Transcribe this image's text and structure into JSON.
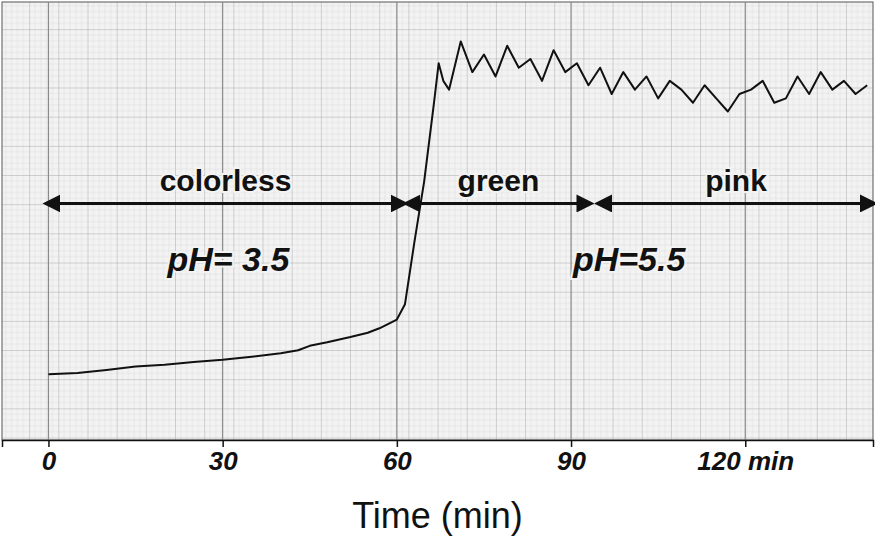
{
  "chart_data": {
    "type": "line",
    "x_label": "Time (min)",
    "x": [
      0,
      5,
      10,
      15,
      20,
      25,
      30,
      35,
      40,
      43,
      45,
      48,
      52,
      55,
      57,
      60,
      61.4,
      63,
      64.7,
      66.4,
      67.2,
      68,
      69,
      71,
      73,
      75,
      77,
      79,
      81,
      83,
      85,
      87,
      89,
      91,
      93,
      95,
      97,
      99,
      101,
      103,
      105,
      107,
      109,
      111,
      113,
      115,
      117,
      119,
      121,
      123,
      125,
      127,
      129,
      131,
      133,
      135,
      137,
      139,
      141
    ],
    "values": [
      15,
      15.3,
      16,
      16.8,
      17.2,
      17.8,
      18.3,
      19,
      19.8,
      20.5,
      21.5,
      22.3,
      23.5,
      24.5,
      25.5,
      27.5,
      31,
      45,
      59,
      77,
      86,
      82,
      80,
      91,
      84,
      88,
      83,
      90,
      85,
      87,
      82,
      89,
      84,
      86,
      81,
      85,
      79,
      84,
      80,
      83,
      78,
      82,
      80,
      77,
      81,
      78,
      75,
      79,
      80,
      82,
      77,
      78,
      83,
      79,
      84,
      80,
      82,
      79,
      81
    ],
    "color": "#111111",
    "xlim": [
      -8,
      142
    ],
    "ylim": [
      0,
      100
    ],
    "xticks": [
      0,
      30,
      60,
      90,
      {
        "value": 120,
        "label": "120 min"
      }
    ],
    "tick_labels": "x",
    "grid": true,
    "phases": [
      {
        "label": "colorless",
        "start": 0,
        "end": 61
      },
      {
        "label": "green",
        "start": 62,
        "end": 93
      },
      {
        "label": "pink",
        "start": 95,
        "end": 142
      }
    ],
    "annotations": [
      {
        "text": "pH= 3.5",
        "x": 31
      },
      {
        "text": "pH=5.5",
        "x": 100
      }
    ]
  }
}
